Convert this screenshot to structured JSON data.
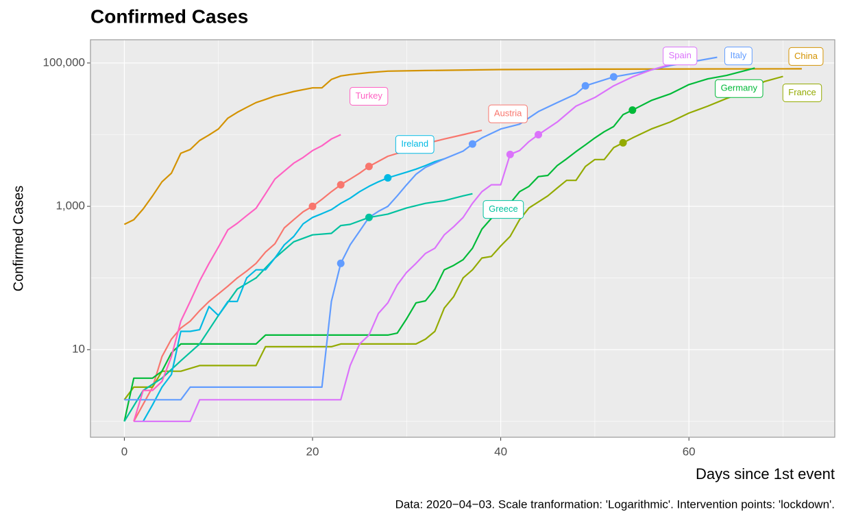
{
  "chart_data": {
    "type": "line",
    "title": "Confirmed Cases",
    "x_label": "Days since 1st event",
    "y_label": "Confirmed Cases",
    "caption": "Data: 2020−04−03. Scale tranformation: 'Logarithmic'. Intervention points: 'lockdown'.",
    "log_y": true,
    "grid": true,
    "xlim": [
      -3.6,
      75.5
    ],
    "xticks": [
      0,
      20,
      40,
      60
    ],
    "x_minor_ticks": [
      10,
      30,
      50,
      70
    ],
    "ylim": [
      0.6,
      211000
    ],
    "yticks": [
      10,
      {
        "value": 1000,
        "label": "1,000"
      },
      {
        "value": 100000,
        "label": "100,000"
      }
    ],
    "y_minor_ticks": [
      1,
      100,
      10000
    ],
    "series": [
      {
        "name": "Austria",
        "color": "#F8766D",
        "x": [
          1,
          3,
          4,
          5,
          6,
          7,
          8,
          9,
          10,
          11,
          12,
          13,
          14,
          15,
          16,
          17,
          18,
          19,
          20,
          21,
          22,
          23,
          24,
          25,
          26,
          28,
          30,
          32,
          34,
          36,
          38
        ],
        "values": [
          1,
          3,
          8,
          14,
          20,
          25,
          35,
          47,
          60,
          77,
          100,
          125,
          160,
          230,
          300,
          500,
          650,
          840,
          1000,
          1250,
          1600,
          2000,
          2400,
          2900,
          3600,
          5000,
          6000,
          7500,
          8700,
          10000,
          11500
        ],
        "lockdown_x": [
          20,
          23,
          26
        ]
      },
      {
        "name": "China",
        "color": "#D39200",
        "x": [
          0,
          1,
          2,
          3,
          4,
          5,
          6,
          7,
          8,
          9,
          10,
          11,
          12,
          13,
          14,
          15,
          16,
          17,
          18,
          19,
          20,
          21,
          22,
          23,
          24,
          26,
          28,
          32,
          40,
          50,
          72
        ],
        "values": [
          560,
          650,
          920,
          1400,
          2200,
          2900,
          5500,
          6200,
          8300,
          9900,
          12000,
          17000,
          20500,
          24000,
          28000,
          31000,
          34500,
          37000,
          40000,
          42500,
          45000,
          45000,
          59000,
          66000,
          69000,
          73500,
          77000,
          78500,
          81000,
          82000,
          83000
        ],
        "lockdown_x": []
      },
      {
        "name": "France",
        "color": "#93AA00",
        "x": [
          0,
          1,
          3,
          4,
          6,
          8,
          14,
          15,
          22,
          23,
          31,
          32,
          33,
          34,
          35,
          36,
          37,
          38,
          39,
          40,
          41,
          42,
          43,
          44,
          45,
          46,
          47,
          48,
          49,
          50,
          51,
          52,
          53,
          54,
          56,
          58,
          60,
          62,
          64,
          66,
          68,
          70
        ],
        "values": [
          2,
          3,
          3,
          5,
          5,
          6,
          6,
          11,
          11,
          12,
          12,
          14,
          18,
          38,
          55,
          100,
          130,
          190,
          200,
          280,
          380,
          650,
          950,
          1150,
          1400,
          1800,
          2300,
          2300,
          3600,
          4500,
          4500,
          6600,
          7700,
          9000,
          12000,
          15000,
          20000,
          25000,
          32000,
          40000,
          55000,
          65000
        ],
        "lockdown_x": [
          53
        ]
      },
      {
        "name": "Germany",
        "color": "#00BA38",
        "x": [
          0,
          1,
          3,
          4,
          5,
          6,
          7,
          14,
          15,
          28,
          29,
          30,
          31,
          32,
          33,
          34,
          35,
          36,
          37,
          38,
          39,
          40,
          41,
          42,
          43,
          44,
          45,
          46,
          47,
          48,
          49,
          50,
          51,
          52,
          53,
          54,
          56,
          58,
          60,
          62,
          64,
          67
        ],
        "values": [
          1,
          4,
          4,
          5,
          9,
          12,
          12,
          12,
          16,
          16,
          17,
          27,
          45,
          48,
          70,
          130,
          150,
          180,
          260,
          480,
          680,
          850,
          1100,
          1600,
          1900,
          2600,
          2700,
          3700,
          4600,
          5800,
          7200,
          9000,
          11000,
          13000,
          19000,
          22000,
          30000,
          37000,
          50000,
          60000,
          67000,
          85000
        ],
        "lockdown_x": [
          54
        ]
      },
      {
        "name": "Greece",
        "color": "#00C19F",
        "x": [
          0,
          2,
          4,
          6,
          8,
          10,
          12,
          14,
          16,
          18,
          20,
          22,
          23,
          24,
          26,
          28,
          30,
          32,
          34,
          36,
          37
        ],
        "values": [
          1,
          2.7,
          4,
          7,
          12,
          30,
          70,
          100,
          190,
          320,
          400,
          420,
          540,
          560,
          700,
          780,
          950,
          1100,
          1200,
          1400,
          1500
        ],
        "lockdown_x": [
          26
        ]
      },
      {
        "name": "Ireland",
        "color": "#00B9E3",
        "x": [
          2,
          3,
          4,
          5,
          6,
          7,
          8,
          9,
          10,
          11,
          12,
          13,
          14,
          15,
          16,
          17,
          18,
          19,
          20,
          21,
          22,
          23,
          24,
          25,
          26,
          27,
          28,
          30,
          31,
          32,
          33,
          34
        ],
        "values": [
          1,
          1.7,
          3,
          4.5,
          18,
          18,
          19,
          40,
          30,
          47,
          47,
          100,
          130,
          130,
          190,
          290,
          380,
          570,
          700,
          790,
          900,
          1100,
          1300,
          1600,
          1900,
          2200,
          2500,
          3000,
          3300,
          3700,
          4200,
          4600
        ],
        "lockdown_x": [
          28
        ]
      },
      {
        "name": "Italy",
        "color": "#619CFF",
        "x": [
          0,
          6,
          7,
          21,
          22,
          23,
          24,
          25,
          26,
          27,
          28,
          29,
          30,
          31,
          32,
          34,
          36,
          37,
          38,
          40,
          42,
          44,
          46,
          48,
          49,
          52,
          55,
          58,
          63
        ],
        "values": [
          2,
          2,
          3,
          3,
          47,
          160,
          290,
          450,
          700,
          850,
          1000,
          1400,
          2000,
          2800,
          3500,
          4600,
          5900,
          7400,
          9000,
          12000,
          14000,
          21000,
          28000,
          37000,
          48000,
          64000,
          75000,
          92000,
          120000
        ],
        "lockdown_x": [
          23,
          37,
          49,
          52
        ]
      },
      {
        "name": "Spain",
        "color": "#DB72FB",
        "x": [
          1,
          7,
          8,
          23,
          24,
          25,
          26,
          27,
          28,
          29,
          30,
          31,
          32,
          33,
          34,
          35,
          36,
          37,
          38,
          39,
          40,
          41,
          42,
          43,
          44,
          46,
          48,
          50,
          52,
          54,
          56,
          58,
          60
        ],
        "values": [
          1,
          1,
          2,
          2,
          6,
          12,
          16,
          32,
          45,
          80,
          120,
          160,
          220,
          260,
          400,
          520,
          700,
          1100,
          1600,
          2000,
          2000,
          5300,
          6000,
          8000,
          10000,
          15000,
          25000,
          33000,
          48000,
          64000,
          80000,
          95000,
          110000
        ],
        "lockdown_x": [
          41,
          44
        ]
      },
      {
        "name": "Turkey",
        "color": "#FF61C3",
        "x": [
          1,
          2,
          3,
          4,
          5,
          6,
          7,
          8,
          9,
          10,
          11,
          12,
          13,
          14,
          15,
          16,
          17,
          18,
          19,
          20,
          21,
          22,
          23
        ],
        "values": [
          1,
          2.7,
          2.7,
          3.6,
          8,
          25,
          47,
          91,
          160,
          270,
          470,
          580,
          740,
          940,
          1500,
          2400,
          3100,
          4000,
          4800,
          6000,
          7000,
          8700,
          10000
        ],
        "lockdown_x": []
      }
    ]
  }
}
